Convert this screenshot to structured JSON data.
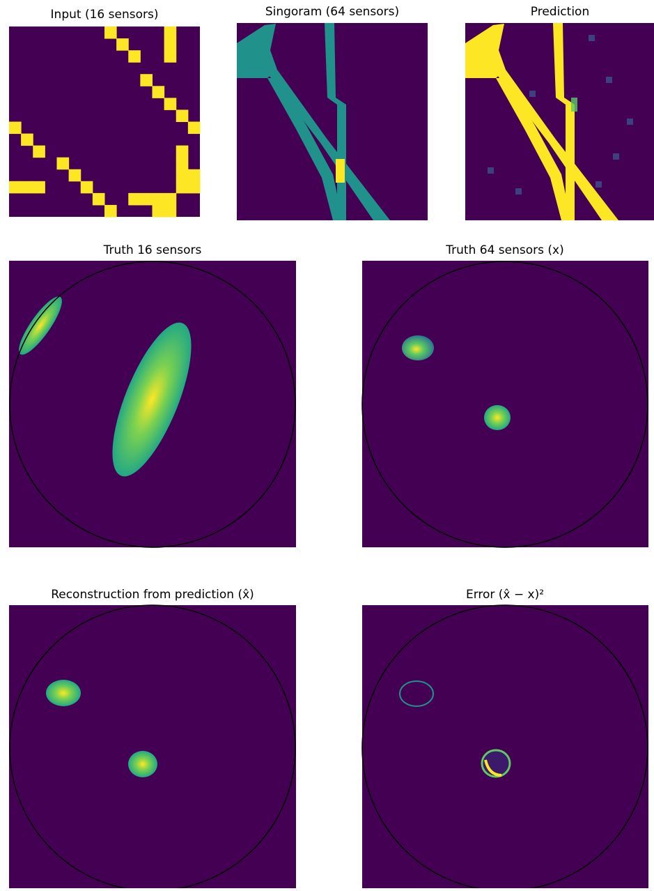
{
  "panels": [
    {
      "title": "Input (16 sensors)"
    },
    {
      "title": "Singoram (64 sensors)"
    },
    {
      "title": "Prediction"
    },
    {
      "title": "Truth 16 sensors"
    },
    {
      "title": "Truth 64 sensors (x)"
    },
    {
      "title": "Reconstruction from prediction (x̂)"
    },
    {
      "title": "Error (x̂ − x)²"
    }
  ]
}
